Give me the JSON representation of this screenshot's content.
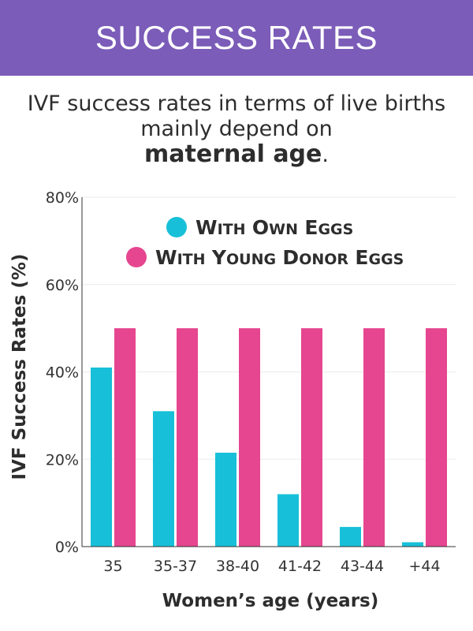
{
  "header": {
    "title": "SUCCESS RATES",
    "background": "#7b5cb8"
  },
  "intro": {
    "text_before": "IVF success rates in terms of live births mainly depend on",
    "emphasis": "maternal age",
    "text_after": "."
  },
  "chart_data": {
    "type": "bar",
    "categories": [
      "35",
      "35-37",
      "38-40",
      "41-42",
      "43-44",
      "+44"
    ],
    "series": [
      {
        "name": "With Own Eggs",
        "color": "#17c0d8",
        "values": [
          41,
          31,
          21.5,
          12,
          4.5,
          1
        ]
      },
      {
        "name": "With Young Donor Eggs",
        "color": "#e5468f",
        "values": [
          50,
          50,
          50,
          50,
          50,
          50
        ]
      }
    ],
    "xlabel": "Women’s age (years)",
    "ylabel": "IVF Success Rates (%)",
    "ylim": [
      0,
      80
    ],
    "yticks": [
      0,
      20,
      40,
      60,
      80
    ],
    "ytick_labels": [
      "0%",
      "20%",
      "40%",
      "60%",
      "80%"
    ],
    "grid": true,
    "legend_position": "top-center"
  }
}
